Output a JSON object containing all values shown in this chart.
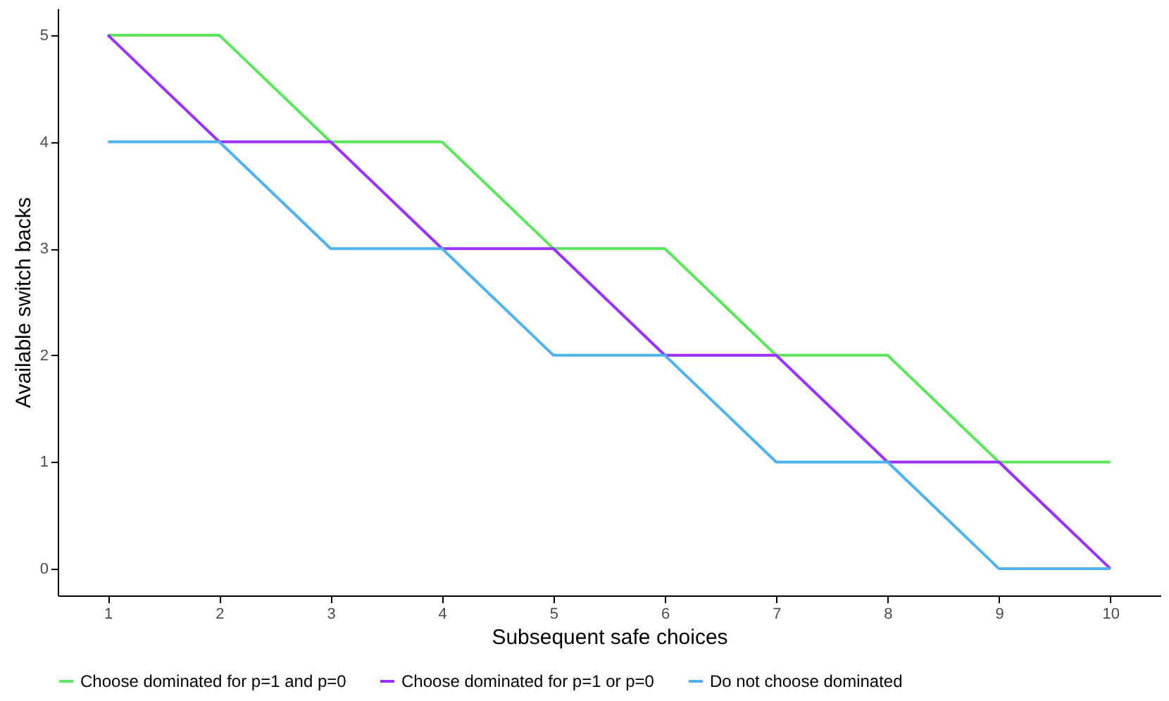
{
  "chart_data": {
    "type": "line",
    "xlabel": "Subsequent safe choices",
    "ylabel": "Available switch backs",
    "x": [
      1,
      2,
      3,
      4,
      5,
      6,
      7,
      8,
      9,
      10
    ],
    "series": [
      {
        "name": "Choose dominated for p=1 and p=0",
        "color": "#5ce65c",
        "values": [
          5,
          5,
          4,
          4,
          3,
          3,
          2,
          2,
          1,
          1
        ]
      },
      {
        "name": "Choose dominated for p=1 or p=0",
        "color": "#9b30ff",
        "values": [
          5,
          4,
          4,
          3,
          3,
          2,
          2,
          1,
          1,
          0
        ]
      },
      {
        "name": "Do not choose dominated",
        "color": "#4fb3f0",
        "values": [
          4,
          4,
          3,
          3,
          2,
          2,
          1,
          1,
          0,
          0
        ]
      }
    ],
    "xlim": [
      0.55,
      10.45
    ],
    "xticks": [
      1,
      2,
      3,
      4,
      5,
      6,
      7,
      8,
      9,
      10
    ],
    "ylim": [
      -0.25,
      5.25
    ],
    "yticks": [
      0,
      1,
      2,
      3,
      4,
      5
    ],
    "grid": false,
    "legend": "bottom",
    "marker": "none",
    "line_style": "solid"
  }
}
